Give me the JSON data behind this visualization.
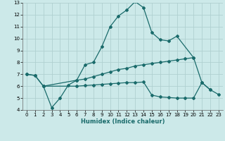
{
  "title": "",
  "xlabel": "Humidex (Indice chaleur)",
  "bg_color": "#cce9e9",
  "grid_color": "#b0d0d0",
  "line_color": "#1a6b6b",
  "xlim": [
    -0.5,
    23.5
  ],
  "ylim": [
    4,
    13
  ],
  "xticks": [
    0,
    1,
    2,
    3,
    4,
    5,
    6,
    7,
    8,
    9,
    10,
    11,
    12,
    13,
    14,
    15,
    16,
    17,
    18,
    19,
    20,
    21,
    22,
    23
  ],
  "yticks": [
    4,
    5,
    6,
    7,
    8,
    9,
    10,
    11,
    12,
    13
  ],
  "line1_x": [
    0,
    1,
    2,
    3,
    4,
    5,
    6,
    7,
    8,
    9,
    10,
    11,
    12,
    13,
    14,
    15,
    16,
    17,
    18,
    20,
    21,
    22
  ],
  "line1_y": [
    7.0,
    6.9,
    6.0,
    4.2,
    5.0,
    6.1,
    6.5,
    7.8,
    8.0,
    9.3,
    11.0,
    11.9,
    12.4,
    13.1,
    12.6,
    10.5,
    9.9,
    9.8,
    10.2,
    8.4,
    6.3,
    5.7
  ],
  "line2_x": [
    0,
    1,
    2,
    6,
    7,
    8,
    9,
    10,
    11,
    12,
    13,
    14,
    15,
    16,
    17,
    18,
    19,
    20
  ],
  "line2_y": [
    7.0,
    6.9,
    6.0,
    6.5,
    6.6,
    6.8,
    7.0,
    7.2,
    7.4,
    7.5,
    7.7,
    7.8,
    7.9,
    8.0,
    8.1,
    8.2,
    8.3,
    8.4
  ],
  "line3_x": [
    2,
    6,
    7,
    8,
    9,
    10,
    11,
    12,
    13,
    14,
    15,
    16,
    17,
    18,
    19,
    20,
    21,
    22,
    23
  ],
  "line3_y": [
    6.0,
    6.0,
    6.05,
    6.1,
    6.15,
    6.2,
    6.25,
    6.3,
    6.3,
    6.35,
    5.25,
    5.1,
    5.05,
    5.0,
    5.0,
    5.0,
    6.3,
    5.7,
    5.3
  ]
}
